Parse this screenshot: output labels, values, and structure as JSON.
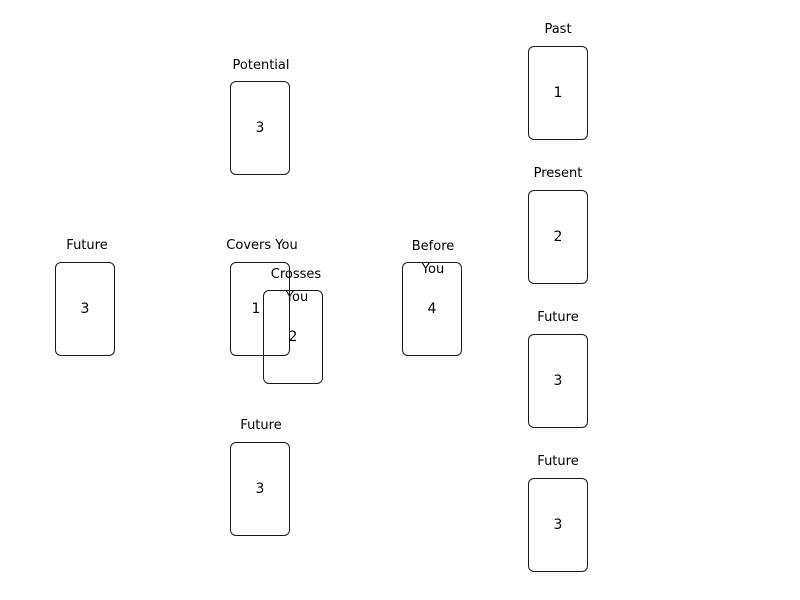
{
  "spread": {
    "potential": {
      "label": "Potential",
      "number": "3"
    },
    "future_left": {
      "label": "Future",
      "number": "3"
    },
    "covers_you": {
      "label": "Covers You",
      "number": "1"
    },
    "crosses_you": {
      "label_line1": "Crosses",
      "label_line2": "You",
      "number": "2"
    },
    "before_you": {
      "label_line1": "Before",
      "label_line2": "You",
      "number": "4"
    },
    "future_bottom": {
      "label": "Future",
      "number": "3"
    },
    "past": {
      "label": "Past",
      "number": "1"
    },
    "present": {
      "label": "Present",
      "number": "2"
    },
    "future_right_1": {
      "label": "Future",
      "number": "3"
    },
    "future_right_2": {
      "label": "Future",
      "number": "3"
    }
  }
}
